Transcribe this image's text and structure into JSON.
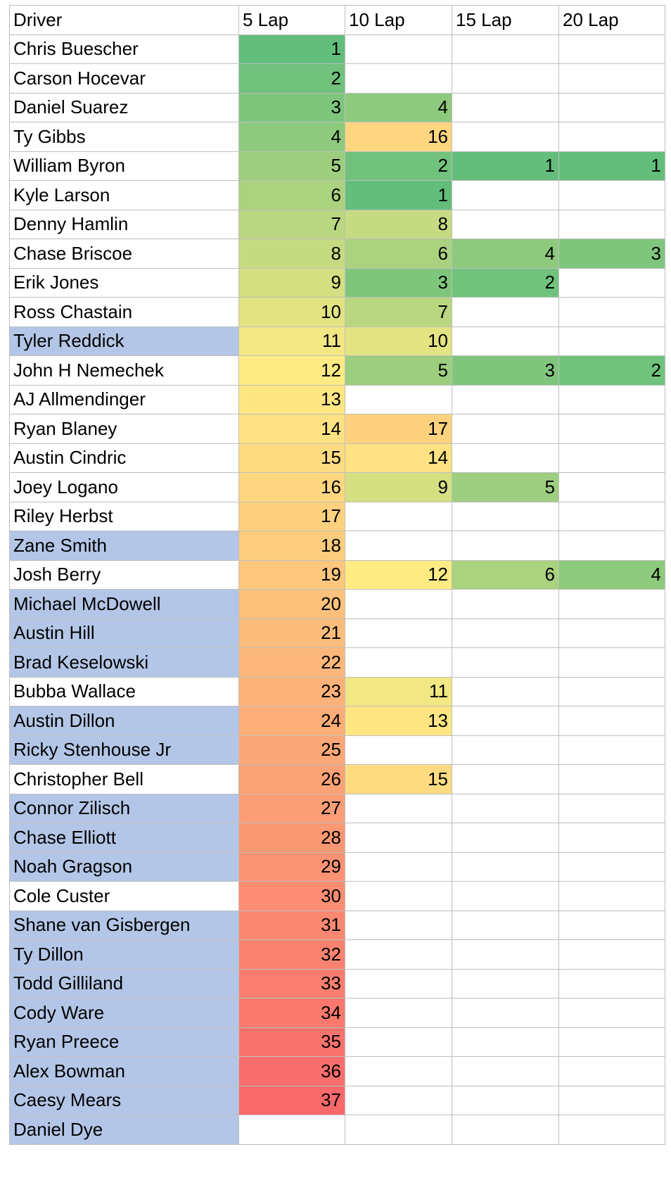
{
  "table": {
    "headers": [
      "Driver",
      "5 Lap",
      "10 Lap",
      "15 Lap",
      "20 Lap"
    ],
    "highlight_color": "#b4c6e7",
    "color_scale": [
      "#63be7b",
      "#ffeb84",
      "#f8696b"
    ],
    "rows": [
      {
        "driver": "Chris Buescher",
        "laps": [
          1,
          null,
          null,
          null
        ],
        "highlight": false
      },
      {
        "driver": "Carson Hocevar",
        "laps": [
          2,
          null,
          null,
          null
        ],
        "highlight": false
      },
      {
        "driver": "Daniel Suarez",
        "laps": [
          3,
          4,
          null,
          null
        ],
        "highlight": false
      },
      {
        "driver": "Ty Gibbs",
        "laps": [
          4,
          16,
          null,
          null
        ],
        "highlight": false
      },
      {
        "driver": "William Byron",
        "laps": [
          5,
          2,
          1,
          1
        ],
        "highlight": false
      },
      {
        "driver": "Kyle Larson",
        "laps": [
          6,
          1,
          null,
          null
        ],
        "highlight": false
      },
      {
        "driver": "Denny Hamlin",
        "laps": [
          7,
          8,
          null,
          null
        ],
        "highlight": false
      },
      {
        "driver": "Chase Briscoe",
        "laps": [
          8,
          6,
          4,
          3
        ],
        "highlight": false
      },
      {
        "driver": "Erik Jones",
        "laps": [
          9,
          3,
          2,
          null
        ],
        "highlight": false
      },
      {
        "driver": "Ross Chastain",
        "laps": [
          10,
          7,
          null,
          null
        ],
        "highlight": false
      },
      {
        "driver": "Tyler Reddick",
        "laps": [
          11,
          10,
          null,
          null
        ],
        "highlight": true
      },
      {
        "driver": "John H Nemechek",
        "laps": [
          12,
          5,
          3,
          2
        ],
        "highlight": false
      },
      {
        "driver": "AJ Allmendinger",
        "laps": [
          13,
          null,
          null,
          null
        ],
        "highlight": false
      },
      {
        "driver": "Ryan Blaney",
        "laps": [
          14,
          17,
          null,
          null
        ],
        "highlight": false
      },
      {
        "driver": "Austin Cindric",
        "laps": [
          15,
          14,
          null,
          null
        ],
        "highlight": false
      },
      {
        "driver": "Joey Logano",
        "laps": [
          16,
          9,
          5,
          null
        ],
        "highlight": false
      },
      {
        "driver": "Riley Herbst",
        "laps": [
          17,
          null,
          null,
          null
        ],
        "highlight": false
      },
      {
        "driver": "Zane Smith",
        "laps": [
          18,
          null,
          null,
          null
        ],
        "highlight": true
      },
      {
        "driver": "Josh Berry",
        "laps": [
          19,
          12,
          6,
          4
        ],
        "highlight": false
      },
      {
        "driver": "Michael McDowell",
        "laps": [
          20,
          null,
          null,
          null
        ],
        "highlight": true
      },
      {
        "driver": "Austin Hill",
        "laps": [
          21,
          null,
          null,
          null
        ],
        "highlight": true
      },
      {
        "driver": "Brad Keselowski",
        "laps": [
          22,
          null,
          null,
          null
        ],
        "highlight": true
      },
      {
        "driver": "Bubba Wallace",
        "laps": [
          23,
          11,
          null,
          null
        ],
        "highlight": false
      },
      {
        "driver": "Austin Dillon",
        "laps": [
          24,
          13,
          null,
          null
        ],
        "highlight": true
      },
      {
        "driver": "Ricky Stenhouse Jr",
        "laps": [
          25,
          null,
          null,
          null
        ],
        "highlight": true
      },
      {
        "driver": "Christopher Bell",
        "laps": [
          26,
          15,
          null,
          null
        ],
        "highlight": false
      },
      {
        "driver": "Connor Zilisch",
        "laps": [
          27,
          null,
          null,
          null
        ],
        "highlight": true
      },
      {
        "driver": "Chase Elliott",
        "laps": [
          28,
          null,
          null,
          null
        ],
        "highlight": true
      },
      {
        "driver": "Noah Gragson",
        "laps": [
          29,
          null,
          null,
          null
        ],
        "highlight": true
      },
      {
        "driver": "Cole Custer",
        "laps": [
          30,
          null,
          null,
          null
        ],
        "highlight": false
      },
      {
        "driver": "Shane van Gisbergen",
        "laps": [
          31,
          null,
          null,
          null
        ],
        "highlight": true
      },
      {
        "driver": "Ty Dillon",
        "laps": [
          32,
          null,
          null,
          null
        ],
        "highlight": true
      },
      {
        "driver": "Todd Gilliland",
        "laps": [
          33,
          null,
          null,
          null
        ],
        "highlight": true
      },
      {
        "driver": "Cody Ware",
        "laps": [
          34,
          null,
          null,
          null
        ],
        "highlight": true
      },
      {
        "driver": "Ryan Preece",
        "laps": [
          35,
          null,
          null,
          null
        ],
        "highlight": true
      },
      {
        "driver": "Alex Bowman",
        "laps": [
          36,
          null,
          null,
          null
        ],
        "highlight": true
      },
      {
        "driver": "Caesy Mears",
        "laps": [
          37,
          null,
          null,
          null
        ],
        "highlight": true
      },
      {
        "driver": "Daniel Dye",
        "laps": [
          null,
          null,
          null,
          null
        ],
        "highlight": true
      }
    ]
  }
}
